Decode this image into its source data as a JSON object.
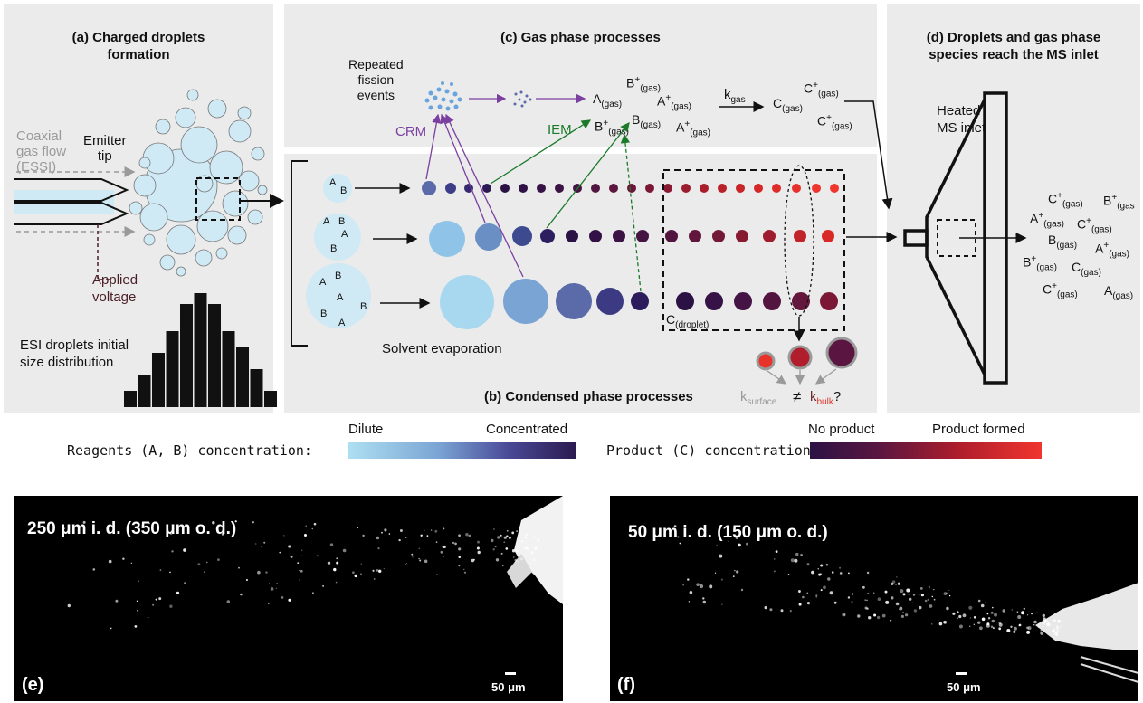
{
  "panels": {
    "a": {
      "title_line1": "(a) Charged droplets",
      "title_line2": "formation"
    },
    "b": {
      "title": "(b) Condensed phase processes"
    },
    "c": {
      "title": "(c) Gas phase processes"
    },
    "d": {
      "title_line1": "(d) Droplets and gas phase",
      "title_line2": "species reach the MS inlet"
    }
  },
  "labels_a": {
    "coaxial_1": "Coaxial",
    "coaxial_2": "gas flow",
    "coaxial_3": "(ESSI)",
    "emitter_1": "Emitter",
    "emitter_2": "tip",
    "applied_1": "Applied",
    "applied_2": "voltage",
    "dist_1": "ESI droplets initial",
    "dist_2": "size distribution"
  },
  "size_distribution": [
    3,
    6,
    10,
    14,
    19,
    21,
    19,
    14,
    11,
    7,
    3
  ],
  "labels_c": {
    "repeated_1": "Repeated",
    "repeated_2": "fission",
    "repeated_3": "events",
    "crm": "CRM",
    "iem": "IEM",
    "kgas": "k",
    "kgas_sub": "gas"
  },
  "labels_b": {
    "solvent": "Solvent evaporation",
    "cdroplet": "C",
    "cdroplet_sub": "(droplet)",
    "ksurface": "k",
    "ksurface_sub": "surface",
    "neq": "≠",
    "kbulk": "k",
    "kbulk_sub": "bulk",
    "question": "?"
  },
  "labels_d": {
    "heated_1": "Heated",
    "heated_2": "MS inlet"
  },
  "legend": {
    "reagents_label": "Reagents (A, B) concentration:",
    "dilute": "Dilute",
    "concentrated": "Concentrated",
    "product_label": "Product (C) concentration:",
    "no_product": "No product",
    "product_formed": "Product formed"
  },
  "photos": {
    "e": {
      "title": "250 μm i. d. (350 μm o. d.)",
      "letter": "(e)",
      "scale": "50 μm"
    },
    "f": {
      "title": "50 μm i. d. (150 μm o. d.)",
      "letter": "(f)",
      "scale": "50 μm"
    }
  },
  "colors": {
    "panel_bg": "#ebebeb",
    "dilute": "#aee0f2",
    "concentrated": "#2b1a4f",
    "no_product": "#2b1245",
    "product_formed": "#f0352e",
    "crm_purple": "#7b3fa0",
    "iem_green": "#1a7a2a"
  }
}
